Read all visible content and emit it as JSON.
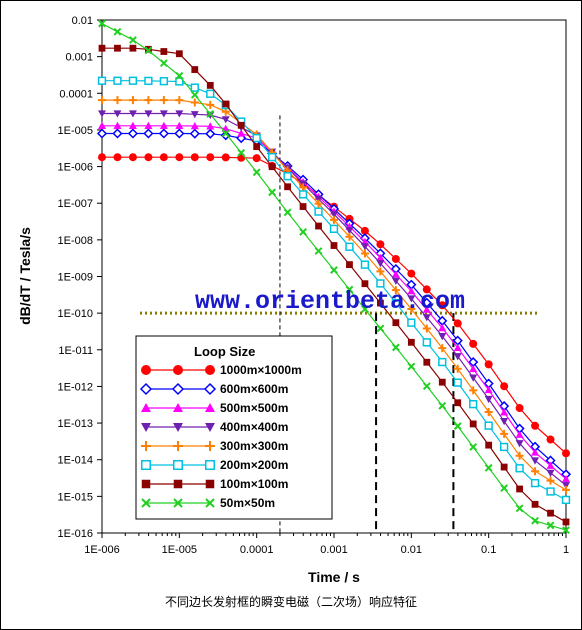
{
  "chart_data": {
    "type": "line",
    "title": "",
    "xlabel": "Time / s",
    "ylabel": "dB/dT  /  Tesla/s",
    "x_scale": "log",
    "y_scale": "log",
    "xlim": [
      1e-06,
      1
    ],
    "ylim": [
      1e-16,
      0.01
    ],
    "x_ticks": [
      "1E-006",
      "1E-005",
      "0.0001",
      "0.001",
      "0.01",
      "0.1",
      "1"
    ],
    "y_ticks": [
      "0.01",
      "0.001",
      "0.0001",
      "1E-005",
      "1E-006",
      "1E-007",
      "1E-008",
      "1E-009",
      "1E-010",
      "1E-011",
      "1E-012",
      "1E-013",
      "1E-014",
      "1E-015",
      "1E-016"
    ],
    "legend_title": "Loop Size",
    "legend_position": "bottom-left",
    "reference_lines": {
      "horizontal_dotted_y": 1e-10,
      "vertical_thin_dashed_x": 0.0002,
      "vertical_dashed_x": [
        0.0035,
        0.035
      ]
    },
    "series": [
      {
        "name": "1000m×1000m",
        "color": "#ff0000",
        "marker": "circle",
        "x": [
          1e-06,
          3.16e-06,
          1e-05,
          3.16e-05,
          0.0001,
          0.000316,
          0.001,
          0.00316,
          0.01,
          0.0316,
          0.1,
          0.316,
          1
        ],
        "y": [
          1.8e-06,
          1.8e-06,
          1.8e-06,
          1.8e-06,
          1.7e-06,
          5e-07,
          8e-08,
          1.2e-08,
          1.2e-09,
          1e-10,
          4e-12,
          1.3e-13,
          1.5e-14
        ]
      },
      {
        "name": "600m×600m",
        "color": "#0000ff",
        "marker": "diamond-open",
        "x": [
          1e-06,
          3.16e-06,
          1e-05,
          3.16e-05,
          0.0001,
          0.000316,
          0.001,
          0.00316,
          0.01,
          0.0316,
          0.1,
          0.316,
          1
        ],
        "y": [
          8e-06,
          8e-06,
          8e-06,
          7.8e-06,
          5e-06,
          7e-07,
          7e-08,
          7e-09,
          6e-10,
          3.5e-11,
          1.2e-12,
          3.5e-14,
          4e-15
        ]
      },
      {
        "name": "500m×500m",
        "color": "#ff00ff",
        "marker": "triangle",
        "x": [
          1e-06,
          3.16e-06,
          1e-05,
          3.16e-05,
          0.0001,
          0.000316,
          0.001,
          0.00316,
          0.01,
          0.0316,
          0.1,
          0.316,
          1
        ],
        "y": [
          1.3e-05,
          1.3e-05,
          1.3e-05,
          1.25e-05,
          6e-06,
          6e-07,
          6e-08,
          5.5e-09,
          4e-10,
          2.2e-11,
          8e-13,
          2.4e-14,
          3e-15
        ]
      },
      {
        "name": "400m×400m",
        "color": "#7020b0",
        "marker": "triangle-down",
        "x": [
          1e-06,
          3.16e-06,
          1e-05,
          3.16e-05,
          0.0001,
          0.000316,
          0.001,
          0.00316,
          0.01,
          0.0316,
          0.1,
          0.316,
          1
        ],
        "y": [
          2.8e-05,
          2.8e-05,
          2.8e-05,
          2.5e-05,
          7e-06,
          5.5e-07,
          5e-08,
          4e-09,
          2.5e-10,
          1.3e-11,
          4.5e-13,
          1.4e-14,
          2e-15
        ]
      },
      {
        "name": "300m×300m",
        "color": "#ff8000",
        "marker": "plus",
        "x": [
          1e-06,
          3.16e-06,
          1e-05,
          3.16e-05,
          0.0001,
          0.000316,
          0.001,
          0.00316,
          0.01,
          0.0316,
          0.1,
          0.316,
          1
        ],
        "y": [
          6.5e-05,
          6.5e-05,
          6.5e-05,
          4.5e-05,
          7.5e-06,
          4.5e-07,
          3.5e-08,
          2.5e-09,
          1.3e-10,
          6e-12,
          2e-13,
          6.5e-15,
          1.5e-15
        ]
      },
      {
        "name": "200m×200m",
        "color": "#00c0e0",
        "marker": "square-open",
        "x": [
          1e-06,
          3.16e-06,
          1e-05,
          3.16e-05,
          0.0001,
          0.000316,
          0.001,
          0.00316,
          0.01,
          0.0316,
          0.1,
          0.316,
          1
        ],
        "y": [
          0.00022,
          0.00022,
          0.00021,
          8e-05,
          6e-06,
          3e-07,
          2e-08,
          1.2e-09,
          5.5e-11,
          2.5e-12,
          8.5e-14,
          3e-15,
          8e-16
        ]
      },
      {
        "name": "100m×100m",
        "color": "#8b0000",
        "marker": "square",
        "x": [
          1e-06,
          3.16e-06,
          1e-05,
          3.16e-05,
          0.0001,
          0.000316,
          0.001,
          0.00316,
          0.01,
          0.0316,
          0.1,
          0.316,
          1
        ],
        "y": [
          0.0017,
          0.0017,
          0.0012,
          0.0001,
          3.5e-06,
          1.5e-07,
          7e-09,
          3.5e-10,
          1.6e-11,
          7e-13,
          2.5e-14,
          8e-16,
          2e-16
        ]
      },
      {
        "name": "50m×50m",
        "color": "#20d020",
        "marker": "x",
        "x": [
          1e-06,
          3.16e-06,
          1e-05,
          3.16e-05,
          0.0001,
          0.000316,
          0.001,
          0.00316,
          0.01,
          0.0316,
          0.1,
          0.316,
          1
        ],
        "y": [
          0.008,
          0.0022,
          0.0003,
          1.5e-05,
          7e-07,
          3e-08,
          1.5e-09,
          7e-11,
          3.5e-12,
          1.6e-13,
          6e-15,
          2.5e-16,
          1.2e-16
        ]
      }
    ]
  },
  "watermark": "www.orientbeta.com",
  "caption": "不同边长发射框的瞬变电磁（二次场）响应特征"
}
